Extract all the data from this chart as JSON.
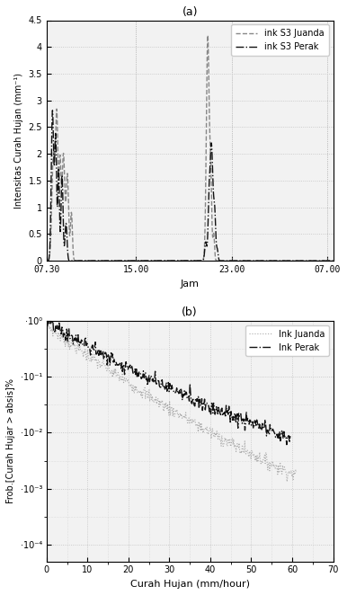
{
  "plot_a": {
    "title": "(a)",
    "ylabel": "Intensitas Curah Hujan (mm⁻¹)",
    "xlabel": "Jam",
    "xlim_labels": [
      "07.30",
      "15.00",
      "23.00",
      "07.00"
    ],
    "xlim": [
      0,
      1440
    ],
    "ylim": [
      0,
      4.5
    ],
    "yticks": [
      0,
      0.5,
      1.0,
      1.5,
      2.0,
      2.5,
      3.0,
      3.5,
      4.0,
      4.5
    ],
    "xtick_positions": [
      0,
      450,
      930,
      1410
    ],
    "legend1": "ink S3 Juanda",
    "legend2": "ink S3 Perak",
    "color1": "#888888",
    "color2": "#111111",
    "grid_color": "#bbbbbb",
    "bg_color": "#f2f2f2"
  },
  "plot_b": {
    "title": "(b)",
    "ylabel": "Frob.[Curah Hujar > absis]%",
    "xlabel": "Curah Hujan (mm/hour)",
    "xlim": [
      0,
      70
    ],
    "ylim": [
      -4.3,
      -1.85
    ],
    "yticks": [
      -4,
      -3,
      -2,
      -1,
      0
    ],
    "ytick_labels": [
      "·10⁻⁴",
      "·10⁻³",
      "·10⁻²",
      "·10⁻¹",
      "·10⁰"
    ],
    "xticks": [
      0,
      10,
      20,
      30,
      40,
      50,
      60,
      70
    ],
    "legend1": "Ink Juanda",
    "legend2": "Ink Perak",
    "color1": "#aaaaaa",
    "color2": "#111111",
    "grid_color": "#bbbbbb",
    "bg_color": "#f2f2f2"
  }
}
